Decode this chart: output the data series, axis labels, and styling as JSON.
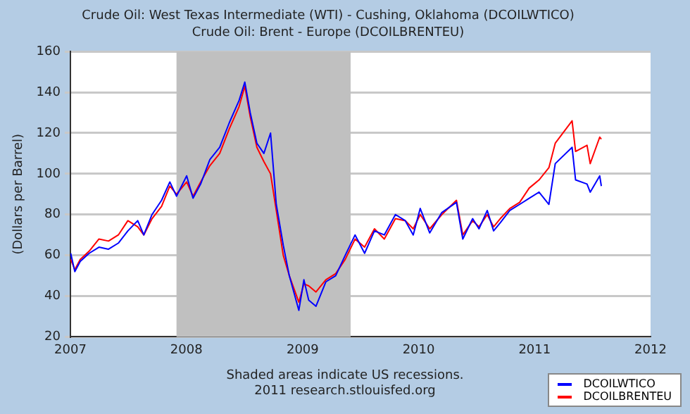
{
  "chart_data": {
    "type": "line",
    "title": "Crude Oil: West Texas Intermediate (WTI) - Cushing, Oklahoma (DCOILWTICO)",
    "subtitle": "Crude Oil: Brent - Europe (DCOILBRENTEU)",
    "ylabel": "(Dollars per Barrel)",
    "x": [
      "2007-01-02",
      "2007-01-15",
      "2007-02-01",
      "2007-03-01",
      "2007-04-01",
      "2007-05-01",
      "2007-06-01",
      "2007-07-01",
      "2007-08-01",
      "2007-08-20",
      "2007-09-15",
      "2007-10-15",
      "2007-11-10",
      "2007-12-01",
      "2008-01-02",
      "2008-01-22",
      "2008-02-15",
      "2008-03-15",
      "2008-04-15",
      "2008-05-15",
      "2008-06-15",
      "2008-07-03",
      "2008-07-20",
      "2008-08-10",
      "2008-09-01",
      "2008-09-22",
      "2008-10-10",
      "2008-11-01",
      "2008-11-20",
      "2008-12-20",
      "2009-01-05",
      "2009-01-20",
      "2009-02-12",
      "2009-03-15",
      "2009-04-15",
      "2009-05-15",
      "2009-06-15",
      "2009-07-15",
      "2009-08-15",
      "2009-09-15",
      "2009-10-20",
      "2009-11-20",
      "2009-12-15",
      "2010-01-06",
      "2010-02-05",
      "2010-03-15",
      "2010-04-30",
      "2010-05-20",
      "2010-06-20",
      "2010-07-10",
      "2010-08-05",
      "2010-08-25",
      "2010-09-15",
      "2010-10-15",
      "2010-11-15",
      "2010-12-15",
      "2011-01-15",
      "2011-02-15",
      "2011-03-07",
      "2011-04-29",
      "2011-05-10",
      "2011-06-15",
      "2011-06-25",
      "2011-07-25",
      "2011-07-30"
    ],
    "series": [
      {
        "name": "DCOILWTICO",
        "color": "#0000ff",
        "values": [
          61,
          52,
          57,
          61,
          64,
          63,
          66,
          72,
          77,
          70,
          80,
          87,
          96,
          89,
          99,
          88,
          95,
          107,
          113,
          125,
          136,
          145,
          130,
          115,
          110,
          120,
          85,
          65,
          50,
          33,
          48,
          38,
          35,
          47,
          50,
          60,
          70,
          61,
          72,
          70,
          80,
          77,
          70,
          83,
          71,
          81,
          86,
          68,
          78,
          73,
          82,
          72,
          76,
          82,
          85,
          88,
          91,
          85,
          105,
          113,
          97,
          95,
          91,
          99,
          94
        ]
      },
      {
        "name": "DCOILBRENTEU",
        "color": "#ff0000",
        "values": [
          58,
          53,
          58,
          62,
          68,
          67,
          70,
          77,
          74,
          70,
          78,
          84,
          94,
          90,
          96,
          89,
          96,
          104,
          110,
          122,
          133,
          143,
          128,
          113,
          106,
          100,
          82,
          60,
          50,
          37,
          46,
          45,
          42,
          48,
          51,
          58,
          68,
          64,
          73,
          68,
          78,
          77,
          73,
          80,
          73,
          80,
          87,
          70,
          77,
          74,
          80,
          74,
          78,
          83,
          86,
          93,
          97,
          103,
          115,
          126,
          111,
          114,
          105,
          118,
          117
        ]
      }
    ],
    "xlim": [
      "2007",
      "2012"
    ],
    "xticks": [
      "2007",
      "2008",
      "2009",
      "2010",
      "2011",
      "2012"
    ],
    "ylim": [
      20,
      160
    ],
    "yticks": [
      20,
      40,
      60,
      80,
      100,
      120,
      140,
      160
    ],
    "bands": [
      {
        "axis": "x",
        "from": "2007-12",
        "to": "2009-06",
        "color": "#c0c0c0"
      }
    ],
    "grid": "y",
    "legend": "bottom right",
    "marker": "none",
    "line_style": "solid",
    "annotations": [
      "Shaded areas indicate US recessions.",
      "2011 research.stlouisfed.org"
    ]
  }
}
